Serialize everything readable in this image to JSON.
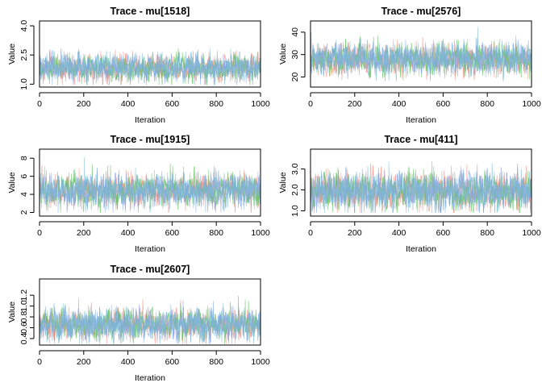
{
  "figure": {
    "background": "#ffffff",
    "series_colors": [
      "#f28e82",
      "#5cc05c",
      "#7fa4ea",
      "#7fb9d4"
    ]
  },
  "chart_data": [
    {
      "type": "line",
      "title": "Trace - mu[1518]",
      "xlabel": "Iteration",
      "ylabel": "Value",
      "xlim": [
        0,
        1000
      ],
      "ylim": [
        0.85,
        4.25
      ],
      "xticks": [
        0,
        200,
        400,
        600,
        800,
        1000
      ],
      "yticks": [
        "1.0",
        "2.5",
        "4.0"
      ],
      "ytick_values": [
        1.0,
        2.5,
        4.0
      ],
      "iterations": 1000,
      "chains": 4,
      "center": 1.85,
      "spread": 0.32,
      "observed_min": 0.95,
      "observed_max": 4.1,
      "grid": false,
      "legend": "none"
    },
    {
      "type": "line",
      "title": "Trace - mu[2576]",
      "xlabel": "Iteration",
      "ylabel": "Value",
      "xlim": [
        0,
        1000
      ],
      "ylim": [
        15.5,
        45
      ],
      "xticks": [
        0,
        200,
        400,
        600,
        800,
        1000
      ],
      "yticks": [
        "20",
        "30",
        "40"
      ],
      "ytick_values": [
        20,
        30,
        40
      ],
      "iterations": 1000,
      "chains": 4,
      "center": 28,
      "spread": 3.2,
      "observed_min": 18,
      "observed_max": 44,
      "grid": false,
      "legend": "none"
    },
    {
      "type": "line",
      "title": "Trace - mu[1915]",
      "xlabel": "Iteration",
      "ylabel": "Value",
      "xlim": [
        0,
        1000
      ],
      "ylim": [
        1.6,
        9.0
      ],
      "xticks": [
        0,
        200,
        400,
        600,
        800,
        1000
      ],
      "yticks": [
        "2",
        "4",
        "6",
        "8"
      ],
      "ytick_values": [
        2,
        4,
        6,
        8
      ],
      "iterations": 1000,
      "chains": 4,
      "center": 4.4,
      "spread": 0.85,
      "observed_min": 2.0,
      "observed_max": 8.7,
      "grid": false,
      "legend": "none"
    },
    {
      "type": "line",
      "title": "Trace - mu[411]",
      "xlabel": "Iteration",
      "ylabel": "Value",
      "xlim": [
        0,
        1000
      ],
      "ylim": [
        0.75,
        3.95
      ],
      "xticks": [
        0,
        200,
        400,
        600,
        800,
        1000
      ],
      "yticks": [
        "1.0",
        "2.0",
        "3.0"
      ],
      "ytick_values": [
        1.0,
        2.0,
        3.0
      ],
      "iterations": 1000,
      "chains": 4,
      "center": 1.95,
      "spread": 0.42,
      "observed_min": 0.9,
      "observed_max": 3.8,
      "grid": false,
      "legend": "none"
    },
    {
      "type": "line",
      "title": "Trace - mu[2607]",
      "xlabel": "Iteration",
      "ylabel": "Value",
      "xlim": [
        0,
        1000
      ],
      "ylim": [
        0.28,
        1.5
      ],
      "xticks": [
        0,
        200,
        400,
        600,
        800,
        1000
      ],
      "yticks": [
        "0.4",
        "0.6",
        "0.8",
        "1.0",
        "1.2"
      ],
      "ytick_values": [
        0.4,
        0.6,
        0.8,
        1.0,
        1.2
      ],
      "iterations": 1000,
      "chains": 4,
      "center": 0.66,
      "spread": 0.13,
      "observed_min": 0.3,
      "observed_max": 1.45,
      "grid": false,
      "legend": "none"
    }
  ]
}
